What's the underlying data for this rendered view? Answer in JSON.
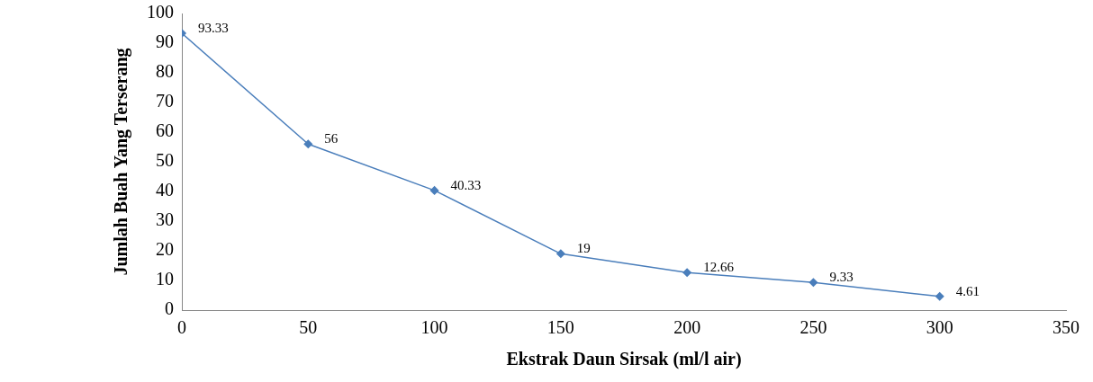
{
  "chart_data": {
    "type": "line",
    "xlabel": "Ekstrak Daun Sirsak (ml/l air)",
    "ylabel": "Jumlah Buah Yang Terserang",
    "x": [
      0,
      50,
      100,
      150,
      200,
      250,
      300
    ],
    "series": [
      {
        "color": "#4a7ebb",
        "values": [
          93.33,
          56,
          40.33,
          19,
          12.66,
          9.33,
          4.61
        ]
      }
    ],
    "xlim": [
      0,
      350
    ],
    "xticks": [
      0,
      50,
      100,
      150,
      200,
      250,
      300,
      350
    ],
    "ylim": [
      0,
      100
    ],
    "yticks": [
      0,
      10,
      20,
      30,
      40,
      50,
      60,
      70,
      80,
      90,
      100
    ],
    "grid": false,
    "legend": false,
    "marker": "diamond",
    "line_style": "solid",
    "data_labels": true
  }
}
